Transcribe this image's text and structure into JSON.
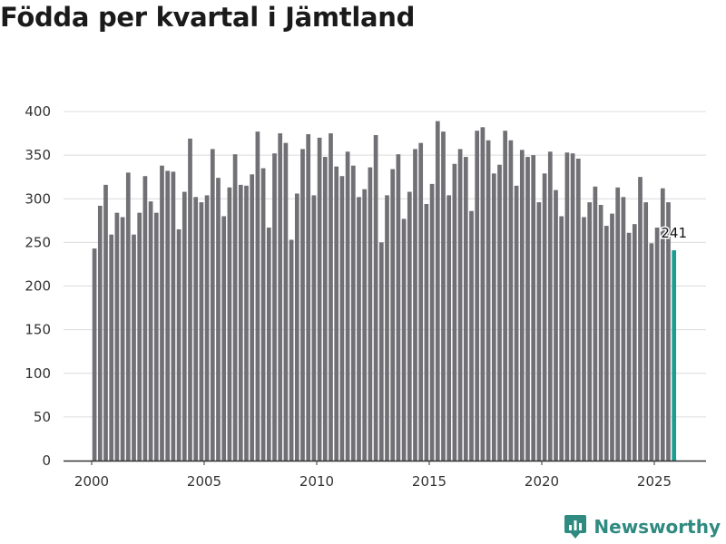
{
  "title": "Födda per kvartal i Jämtland",
  "brand": "Newsworthy",
  "colors": {
    "bar": "#707075",
    "highlight": "#1a9e91",
    "grid": "#dcdcdc",
    "brand": "#2f8a80"
  },
  "chart_data": {
    "type": "bar",
    "title": "Födda per kvartal i Jämtland",
    "xlabel": "",
    "ylabel": "",
    "ylim": [
      0,
      400
    ],
    "yticks": [
      0,
      50,
      100,
      150,
      200,
      250,
      300,
      350,
      400
    ],
    "xticks": [
      2000,
      2005,
      2010,
      2015,
      2020,
      2025
    ],
    "x_start": 2000,
    "periods_per_year": 4,
    "grid": true,
    "highlight_last": true,
    "last_label": "241",
    "values": [
      243,
      292,
      316,
      259,
      284,
      279,
      330,
      259,
      284,
      326,
      297,
      284,
      338,
      332,
      331,
      265,
      308,
      369,
      302,
      296,
      304,
      357,
      324,
      280,
      313,
      351,
      316,
      315,
      328,
      377,
      335,
      267,
      352,
      375,
      364,
      253,
      306,
      357,
      374,
      304,
      370,
      348,
      375,
      337,
      326,
      354,
      338,
      302,
      311,
      336,
      373,
      250,
      304,
      334,
      351,
      277,
      308,
      357,
      364,
      294,
      317,
      389,
      377,
      304,
      340,
      357,
      348,
      286,
      378,
      382,
      367,
      329,
      339,
      378,
      367,
      315,
      356,
      348,
      350,
      296,
      329,
      354,
      310,
      280,
      353,
      352,
      346,
      279,
      296,
      314,
      293,
      269,
      283,
      313,
      302,
      261,
      271,
      325,
      296,
      249,
      267,
      312,
      296,
      241
    ]
  }
}
